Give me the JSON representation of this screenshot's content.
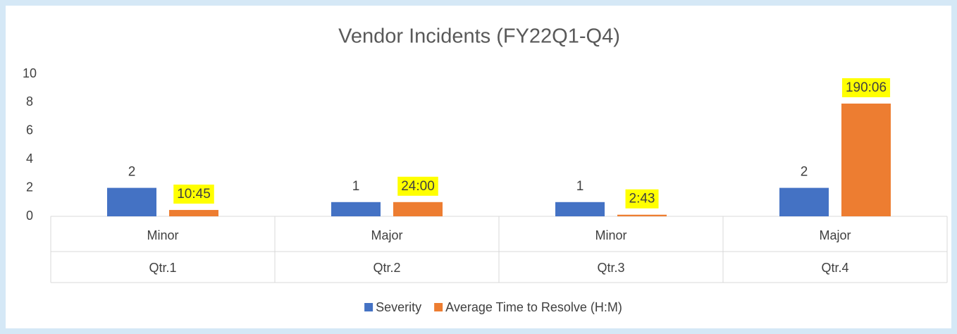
{
  "chart_data": {
    "type": "bar",
    "title": "Vendor Incidents (FY22Q1-Q4)",
    "categories": [
      "Minor",
      "Major",
      "Minor",
      "Major"
    ],
    "category_groups": [
      "Qtr.1",
      "Qtr.2",
      "Qtr.3",
      "Qtr.4"
    ],
    "series": [
      {
        "name": "Severity",
        "color": "#4472c4",
        "values": [
          2,
          1,
          1,
          2
        ]
      },
      {
        "name": "Average Time to Resolve (H:M)",
        "color": "#ed7d31",
        "values": [
          0.448,
          1,
          0.113,
          7.921
        ],
        "value_labels": [
          "10:45",
          "24:00",
          "2:43",
          "190:06"
        ],
        "label_background": "#ffff00"
      }
    ],
    "ylim": [
      0,
      10
    ],
    "yticks": [
      0,
      2,
      4,
      6,
      8,
      10
    ],
    "grid": false,
    "legend": "bottom"
  }
}
